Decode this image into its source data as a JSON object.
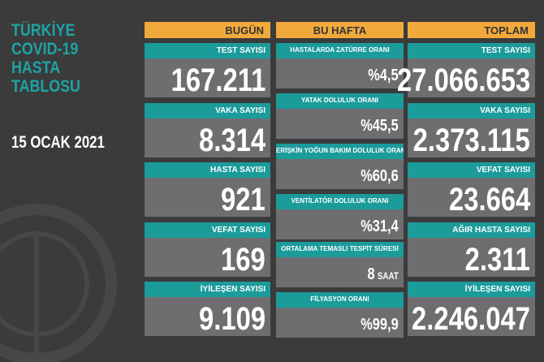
{
  "title": [
    "TÜRKİYE",
    "COVID-19",
    "HASTA",
    "TABLOSU"
  ],
  "date": "15 OCAK 2021",
  "columns": [
    {
      "header": "BUGÜN",
      "cards": [
        {
          "label": "TEST SAYISI",
          "value": "167.211"
        },
        {
          "label": "VAKA SAYISI",
          "value": "8.314"
        },
        {
          "label": "HASTA SAYISI",
          "value": "921"
        },
        {
          "label": "VEFAT SAYISI",
          "value": "169"
        },
        {
          "label": "İYİLEŞEN SAYISI",
          "value": "9.109"
        }
      ]
    },
    {
      "header": "BU HAFTA",
      "cards": [
        {
          "label": "HASTALARDA ZATÜRRE ORANI",
          "value": "%4,5"
        },
        {
          "label": "YATAK DOLULUK ORANI",
          "value": "%45,5"
        },
        {
          "label": "ERİŞKİN YOĞUN BAKIM DOLULUK ORANI",
          "value": "%60,6"
        },
        {
          "label": "VENTİLATÖR DOLULUK ORANI",
          "value": "%31,4"
        },
        {
          "label": "ORTALAMA TEMASLI TESPİT SÜRESİ",
          "value": "8",
          "unit": "SAAT"
        },
        {
          "label": "FİLYASYON ORANI",
          "value": "%99,9"
        }
      ]
    },
    {
      "header": "TOPLAM",
      "cards": [
        {
          "label": "TEST SAYISI",
          "value": "27.066.653"
        },
        {
          "label": "VAKA SAYISI",
          "value": "2.373.115"
        },
        {
          "label": "VEFAT SAYISI",
          "value": "23.664"
        },
        {
          "label": "AĞIR HASTA SAYISI",
          "value": "2.311"
        },
        {
          "label": "İYİLEŞEN SAYISI",
          "value": "2.246.047"
        }
      ]
    }
  ]
}
